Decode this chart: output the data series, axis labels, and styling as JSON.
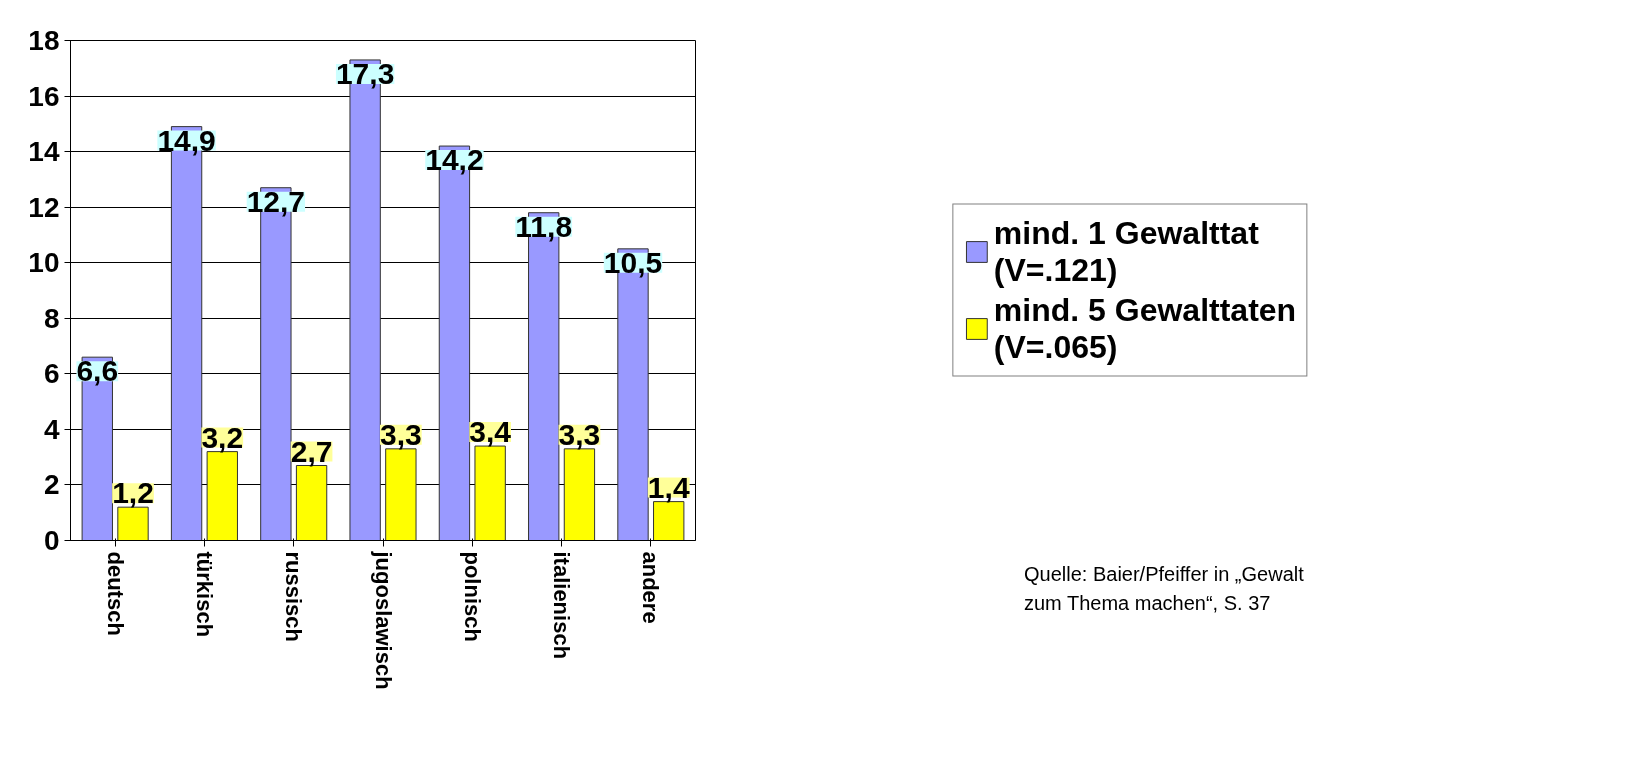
{
  "chart_data": {
    "type": "bar",
    "categories": [
      "deutsch",
      "türkisch",
      "russisch",
      "jugoslawisch",
      "polnisch",
      "italienisch",
      "andere"
    ],
    "series": [
      {
        "name": "mind. 1 Gewalttat\n(V=.121)",
        "color": "#9999ff",
        "values": [
          6.6,
          14.9,
          12.7,
          17.3,
          14.2,
          11.8,
          10.5
        ],
        "value_labels": [
          "6,6",
          "14,9",
          "12,7",
          "17,3",
          "14,2",
          "11,8",
          "10,5"
        ]
      },
      {
        "name": "mind. 5 Gewalttaten\n(V=.065)",
        "color": "#ffff00",
        "values": [
          1.2,
          3.2,
          2.7,
          3.3,
          3.4,
          3.3,
          1.4
        ],
        "value_labels": [
          "1,2",
          "3,2",
          "2,7",
          "3,3",
          "3,4",
          "3,3",
          "1,4"
        ]
      }
    ],
    "ylim": [
      0,
      18
    ],
    "yticks": [
      0,
      2,
      4,
      6,
      8,
      10,
      12,
      14,
      16,
      18
    ],
    "grid": "y",
    "legend": "right",
    "annotations": [
      "Quelle: Baier/Pfeiffer in „Gewalt\nzum Thema machen“, S. 37"
    ]
  }
}
